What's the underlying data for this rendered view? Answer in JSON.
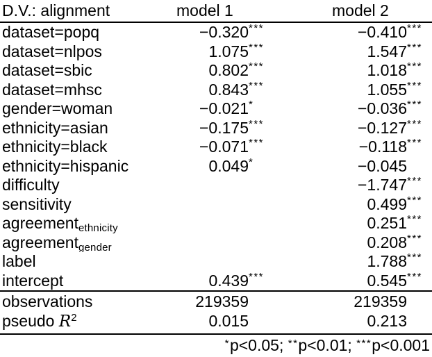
{
  "colors": {
    "background": "#ffffff",
    "text": "#000000",
    "rule": "#000000"
  },
  "header": {
    "dv_label": "D.V.: alignment",
    "model1": "model 1",
    "model2": "model 2"
  },
  "rows": [
    {
      "label": "dataset=popq",
      "sub": "",
      "m1": "−0.320",
      "m1_stars": "***",
      "m2": "−0.410",
      "m2_stars": "***"
    },
    {
      "label": "dataset=nlpos",
      "sub": "",
      "m1": "1.075",
      "m1_stars": "***",
      "m2": "1.547",
      "m2_stars": "***"
    },
    {
      "label": "dataset=sbic",
      "sub": "",
      "m1": "0.802",
      "m1_stars": "***",
      "m2": "1.018",
      "m2_stars": "***"
    },
    {
      "label": "dataset=mhsc",
      "sub": "",
      "m1": "0.843",
      "m1_stars": "***",
      "m2": "1.055",
      "m2_stars": "***"
    },
    {
      "label": "gender=woman",
      "sub": "",
      "m1": "−0.021",
      "m1_stars": "*",
      "m2": "−0.036",
      "m2_stars": "***"
    },
    {
      "label": "ethnicity=asian",
      "sub": "",
      "m1": "−0.175",
      "m1_stars": "***",
      "m2": "−0.127",
      "m2_stars": "***"
    },
    {
      "label": "ethnicity=black",
      "sub": "",
      "m1": "−0.071",
      "m1_stars": "***",
      "m2": "−0.118",
      "m2_stars": "***"
    },
    {
      "label": "ethnicity=hispanic",
      "sub": "",
      "m1": "0.049",
      "m1_stars": "*",
      "m2": "−0.045",
      "m2_stars": ""
    },
    {
      "label": "difficulty",
      "sub": "",
      "m1": "",
      "m1_stars": "",
      "m2": "−1.747",
      "m2_stars": "***"
    },
    {
      "label": "sensitivity",
      "sub": "",
      "m1": "",
      "m1_stars": "",
      "m2": "0.499",
      "m2_stars": "***"
    },
    {
      "label": "agreement",
      "sub": "ethnicity",
      "m1": "",
      "m1_stars": "",
      "m2": "0.251",
      "m2_stars": "***"
    },
    {
      "label": "agreement",
      "sub": "gender",
      "m1": "",
      "m1_stars": "",
      "m2": "0.208",
      "m2_stars": "***"
    },
    {
      "label": "label",
      "sub": "",
      "m1": "",
      "m1_stars": "",
      "m2": "1.788",
      "m2_stars": "***"
    },
    {
      "label": "intercept",
      "sub": "",
      "m1": "0.439",
      "m1_stars": "***",
      "m2": "0.545",
      "m2_stars": "***"
    }
  ],
  "stats": {
    "observations": {
      "label": "observations",
      "m1": "219359",
      "m2": "219359"
    },
    "pseudo_r2": {
      "label_pre": "pseudo ",
      "math_symbol": "R",
      "exponent": "2",
      "m1": "0.015",
      "m2": "0.213"
    }
  },
  "footnote": {
    "segments": [
      {
        "stars": "*",
        "text": "p<0.05; "
      },
      {
        "stars": "**",
        "text": "p<0.01; "
      },
      {
        "stars": "***",
        "text": "p<0.001"
      }
    ]
  }
}
